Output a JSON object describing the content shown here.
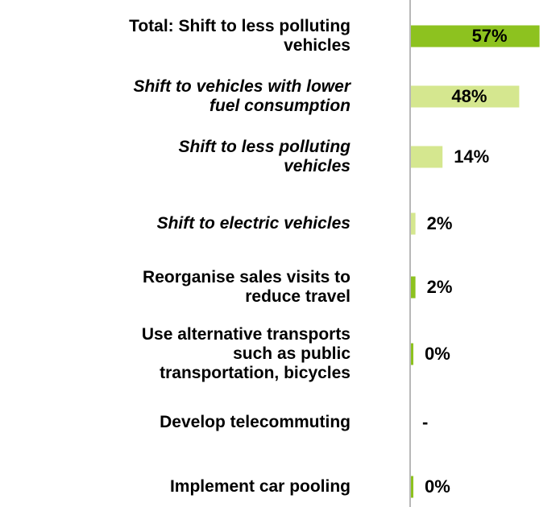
{
  "chart_data": {
    "type": "hbar",
    "categories": [
      "Total: Shift to less polluting\nvehicles",
      "Shift to vehicles with lower\nfuel consumption",
      "Shift to less polluting\nvehicles",
      "Shift to electric vehicles",
      "Reorganise sales visits to\nreduce travel",
      "Use alternative transports\nsuch as public\ntransportation, bicycles",
      "Develop telecommuting",
      "Implement car pooling"
    ],
    "values": [
      57,
      48,
      14,
      2,
      2,
      0,
      null,
      0
    ],
    "value_labels": [
      "57%",
      "48%",
      "14%",
      "2%",
      "2%",
      "0%",
      "-",
      "0%"
    ],
    "colors": [
      "#8dc21f",
      "#d5e78f",
      "#d5e78f",
      "#d5e78f",
      "#8dc21f",
      "#8dc21f",
      "#8dc21f",
      "#8dc21f"
    ],
    "label_styles": [
      "normal",
      "italic",
      "italic",
      "italic",
      "normal",
      "normal",
      "normal",
      "normal"
    ]
  }
}
